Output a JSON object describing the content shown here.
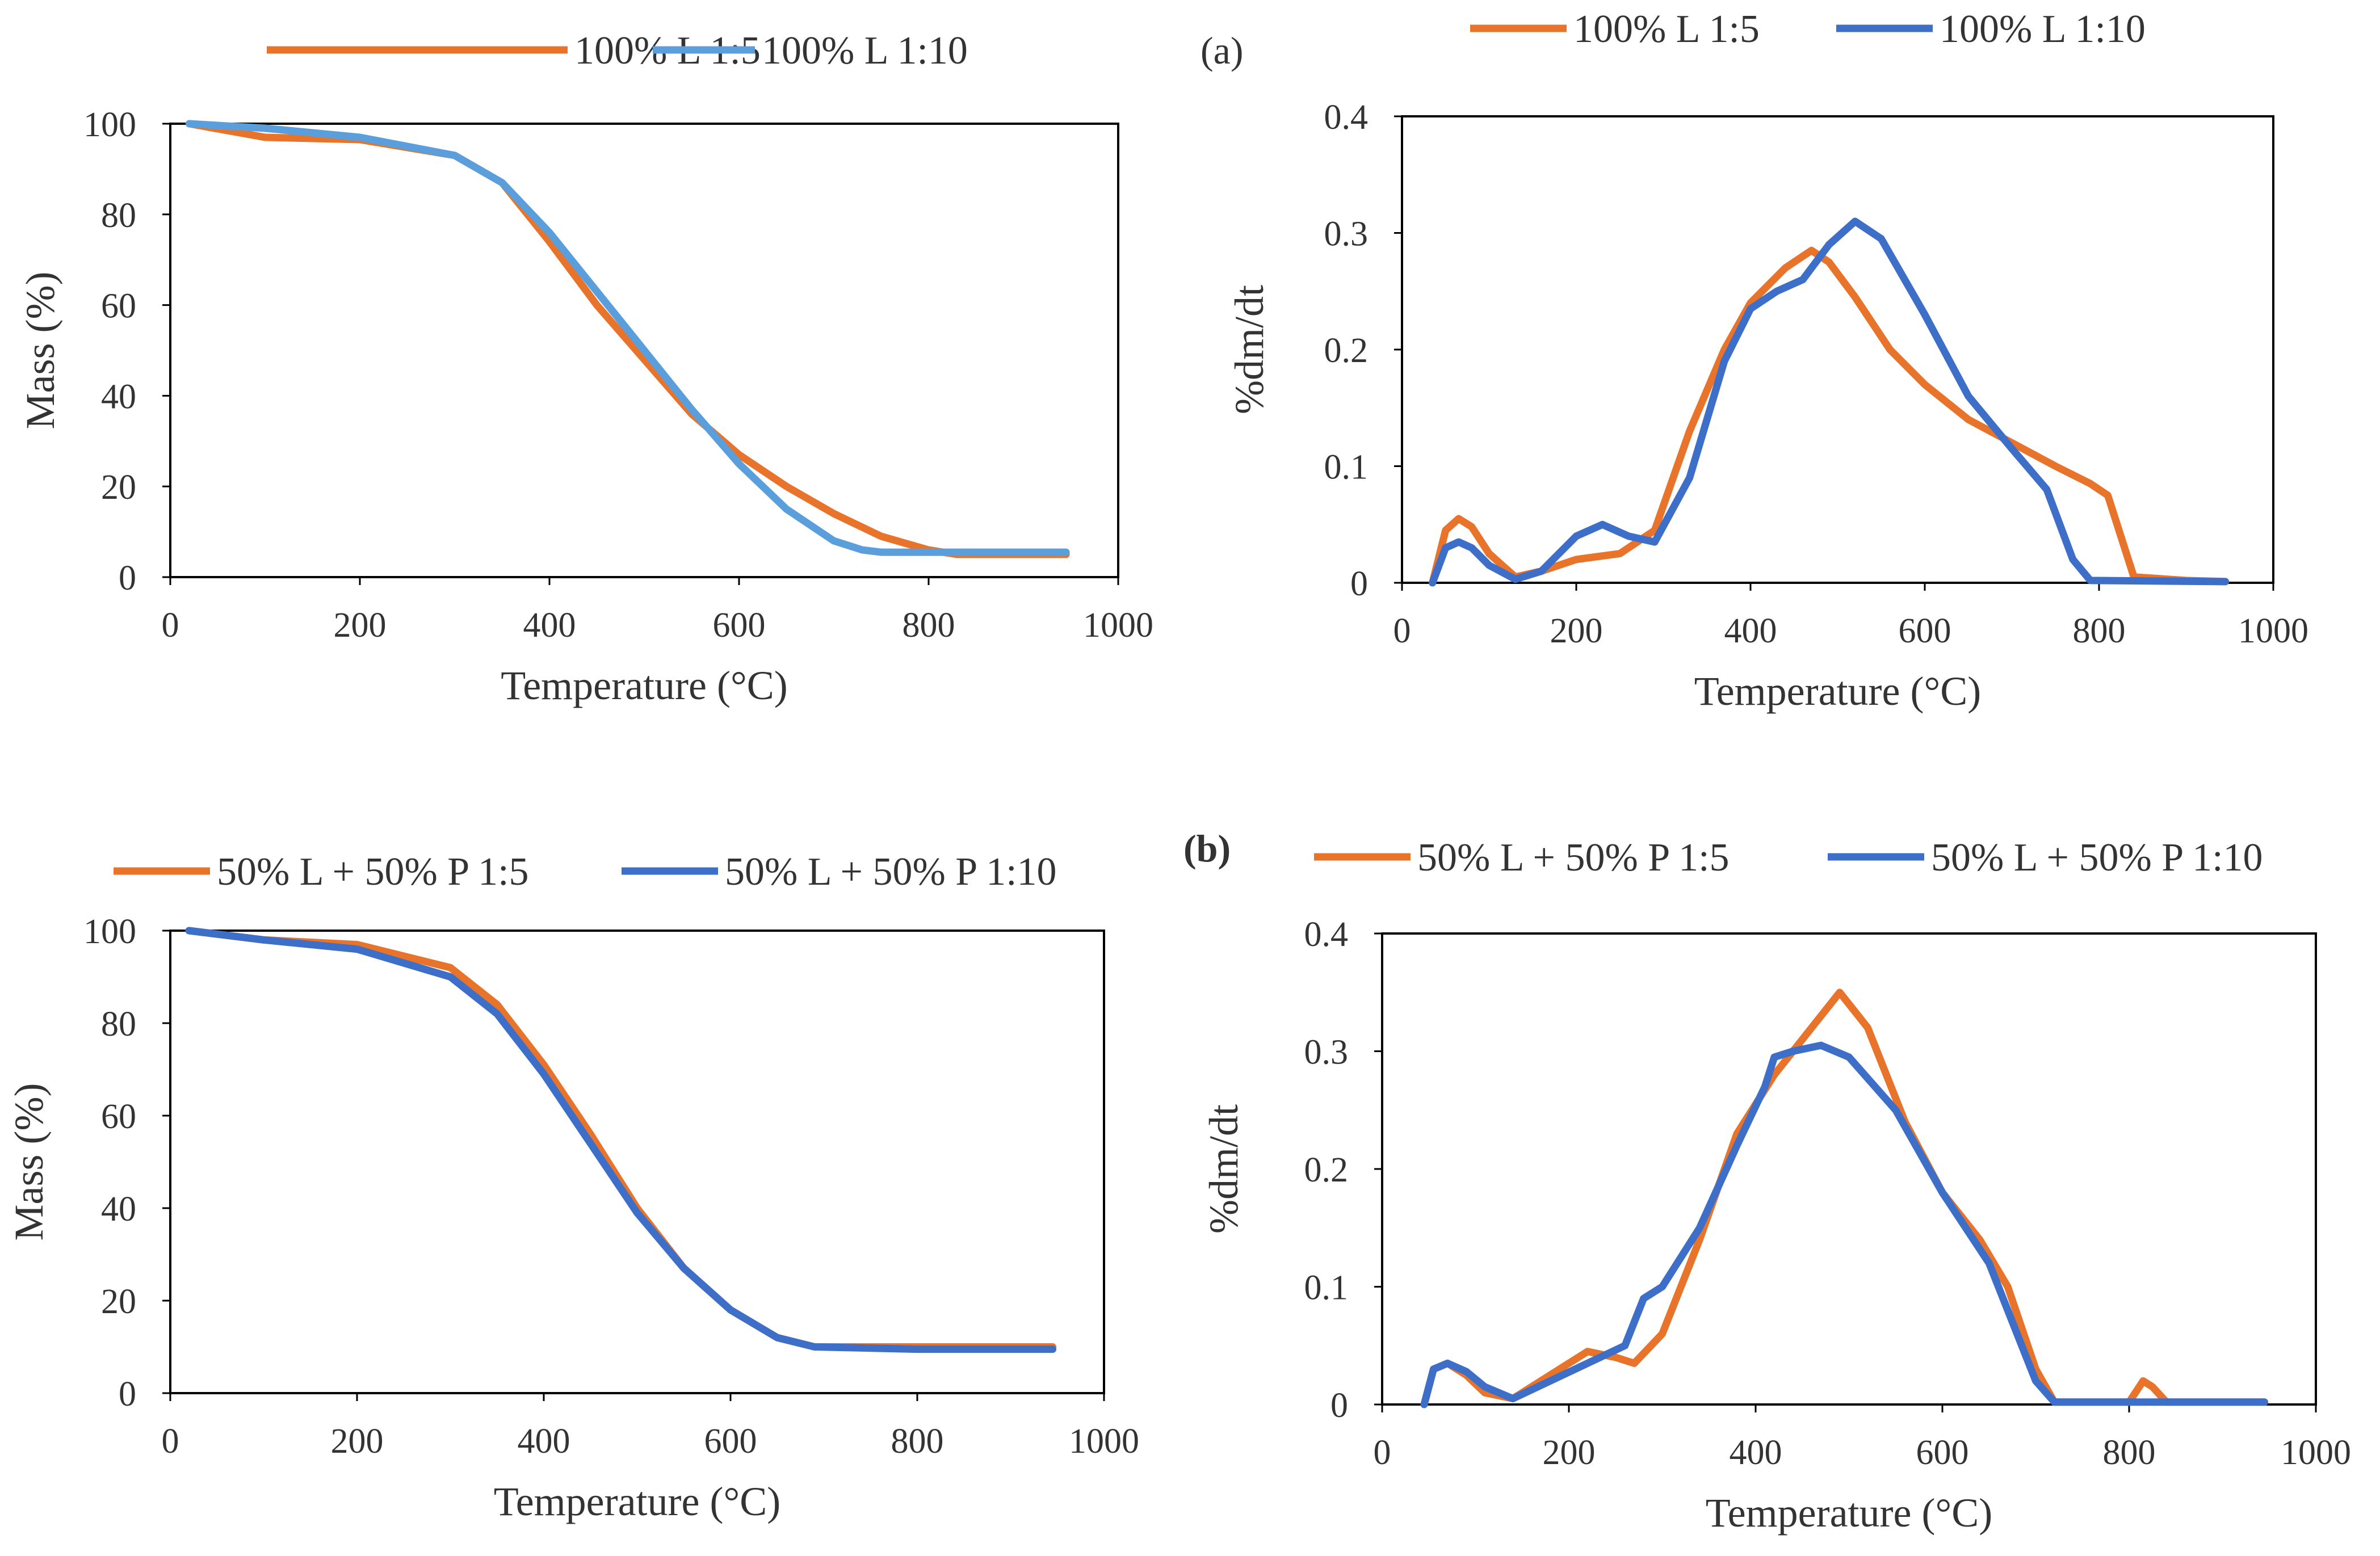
{
  "figure": {
    "panel_labels": {
      "a": "(a)",
      "b": "(b)"
    },
    "colors": {
      "orange": "#e8742c",
      "light_blue": "#5a9fdc",
      "blue": "#3d6fc8",
      "axis": "#000000",
      "text": "#333333"
    }
  },
  "chart_data": [
    {
      "id": "tg_a",
      "type": "line",
      "title": "",
      "xlabel": "Temperature (°C)",
      "ylabel": "Mass (%)",
      "xlim": [
        0,
        1000
      ],
      "ylim": [
        0,
        100
      ],
      "xticks": [
        0,
        200,
        400,
        600,
        800,
        1000
      ],
      "yticks": [
        0,
        20,
        40,
        60,
        80,
        100
      ],
      "legend_position": "top",
      "series": [
        {
          "name": "100% L 1:5",
          "color": "#e8742c",
          "x": [
            20,
            100,
            200,
            300,
            350,
            400,
            450,
            500,
            550,
            600,
            650,
            700,
            750,
            800,
            830,
            945
          ],
          "y": [
            100,
            97,
            96.5,
            93,
            87,
            74,
            60,
            48,
            36,
            27,
            20,
            14,
            9,
            6,
            5,
            5
          ]
        },
        {
          "name": "100% L 1:10",
          "color": "#5a9fdc",
          "x": [
            20,
            100,
            200,
            300,
            350,
            400,
            450,
            500,
            550,
            600,
            650,
            700,
            730,
            750,
            800,
            945
          ],
          "y": [
            100,
            99,
            97,
            93,
            87,
            76,
            63,
            50,
            37,
            25,
            15,
            8,
            6,
            5.5,
            5.5,
            5.5
          ]
        }
      ]
    },
    {
      "id": "dtg_a",
      "type": "line",
      "title": "",
      "xlabel": "Temperature (°C)",
      "ylabel": "%dm/dt",
      "xlim": [
        0,
        1000
      ],
      "ylim": [
        0,
        0.4
      ],
      "xticks": [
        0,
        200,
        400,
        600,
        800,
        1000
      ],
      "yticks": [
        0,
        0.1,
        0.2,
        0.3,
        0.4
      ],
      "legend_position": "top",
      "series": [
        {
          "name": "100% L  1:5",
          "color": "#e8742c",
          "x": [
            35,
            50,
            65,
            80,
            100,
            130,
            160,
            200,
            250,
            290,
            330,
            370,
            400,
            440,
            470,
            490,
            520,
            560,
            600,
            650,
            700,
            750,
            790,
            810,
            825,
            840,
            900,
            945
          ],
          "y": [
            0,
            0.045,
            0.055,
            0.048,
            0.025,
            0.005,
            0.01,
            0.02,
            0.025,
            0.045,
            0.13,
            0.2,
            0.24,
            0.27,
            0.285,
            0.275,
            0.245,
            0.2,
            0.17,
            0.14,
            0.12,
            0.1,
            0.085,
            0.075,
            0.04,
            0.005,
            0.002,
            0.001
          ]
        },
        {
          "name": "100% L  1:10",
          "color": "#3d6fc8",
          "x": [
            35,
            50,
            65,
            80,
            100,
            130,
            160,
            200,
            230,
            260,
            290,
            330,
            370,
            400,
            430,
            460,
            490,
            520,
            550,
            600,
            650,
            700,
            740,
            770,
            790,
            945
          ],
          "y": [
            0,
            0.03,
            0.035,
            0.03,
            0.015,
            0.003,
            0.01,
            0.04,
            0.05,
            0.04,
            0.035,
            0.09,
            0.19,
            0.235,
            0.25,
            0.26,
            0.29,
            0.31,
            0.295,
            0.23,
            0.16,
            0.115,
            0.08,
            0.02,
            0.002,
            0.001
          ]
        }
      ]
    },
    {
      "id": "tg_b",
      "type": "line",
      "title": "",
      "xlabel": "Temperature (°C)",
      "ylabel": "Mass  (%)",
      "xlim": [
        0,
        1000
      ],
      "ylim": [
        0,
        100
      ],
      "xticks": [
        0,
        200,
        400,
        600,
        800,
        1000
      ],
      "yticks": [
        0,
        20,
        40,
        60,
        80,
        100
      ],
      "legend_position": "top",
      "series": [
        {
          "name": "50% L + 50% P 1:5",
          "color": "#e8742c",
          "x": [
            20,
            100,
            200,
            300,
            350,
            400,
            450,
            500,
            550,
            600,
            650,
            690,
            800,
            945
          ],
          "y": [
            100,
            98,
            97,
            92,
            84,
            71,
            56,
            40,
            27,
            18,
            12,
            10,
            10,
            10
          ]
        },
        {
          "name": "50% L + 50% P 1:10",
          "color": "#3d6fc8",
          "x": [
            20,
            100,
            200,
            300,
            350,
            400,
            450,
            500,
            550,
            600,
            650,
            690,
            800,
            945
          ],
          "y": [
            100,
            98,
            96,
            90,
            82,
            69,
            54,
            39,
            27,
            18,
            12,
            10,
            9.5,
            9.5
          ]
        }
      ]
    },
    {
      "id": "dtg_b",
      "type": "line",
      "title": "",
      "xlabel": "Temperature (°C)",
      "ylabel": "%dm/dt",
      "xlim": [
        0,
        1000
      ],
      "ylim": [
        0,
        0.4
      ],
      "xticks": [
        0,
        200,
        400,
        600,
        800,
        1000
      ],
      "yticks": [
        0,
        0.1,
        0.2,
        0.3,
        0.4
      ],
      "legend_position": "top",
      "series": [
        {
          "name": "50% L + 50% P 1:5",
          "color": "#e8742c",
          "x": [
            45,
            55,
            70,
            90,
            110,
            140,
            180,
            220,
            250,
            270,
            300,
            340,
            380,
            420,
            460,
            490,
            520,
            560,
            600,
            640,
            670,
            700,
            720,
            800,
            815,
            825,
            840,
            945
          ],
          "y": [
            0,
            0.03,
            0.035,
            0.025,
            0.01,
            0.005,
            0.025,
            0.045,
            0.04,
            0.035,
            0.06,
            0.14,
            0.23,
            0.28,
            0.32,
            0.35,
            0.32,
            0.24,
            0.18,
            0.14,
            0.1,
            0.03,
            0.002,
            0.002,
            0.02,
            0.015,
            0.002,
            0.002
          ]
        },
        {
          "name": "50% L + 50% P 1:10",
          "color": "#3d6fc8",
          "x": [
            45,
            55,
            70,
            90,
            110,
            140,
            180,
            220,
            260,
            280,
            300,
            340,
            380,
            410,
            420,
            440,
            470,
            500,
            550,
            600,
            650,
            680,
            700,
            720,
            945
          ],
          "y": [
            0,
            0.03,
            0.035,
            0.028,
            0.015,
            0.005,
            0.02,
            0.035,
            0.05,
            0.09,
            0.1,
            0.15,
            0.22,
            0.27,
            0.295,
            0.3,
            0.305,
            0.295,
            0.25,
            0.18,
            0.12,
            0.06,
            0.02,
            0.002,
            0.002
          ]
        }
      ]
    }
  ]
}
